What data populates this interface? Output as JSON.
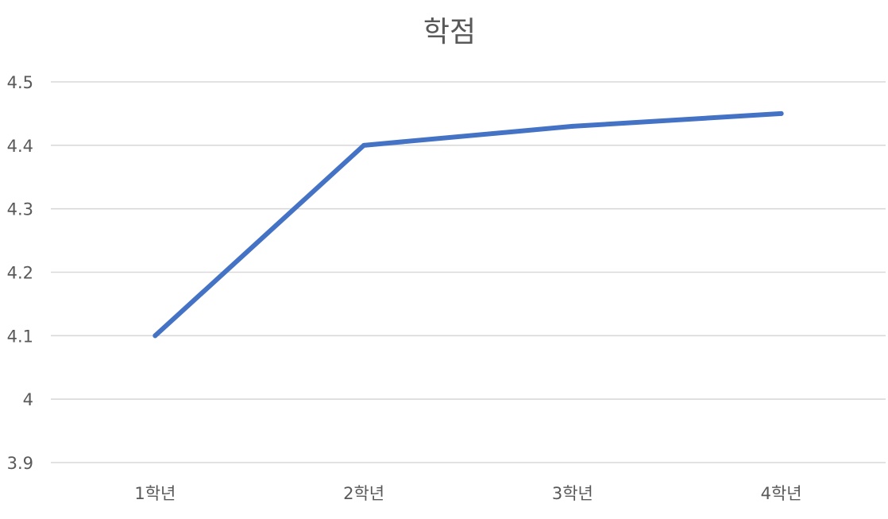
{
  "chart_data": {
    "type": "line",
    "title": "학점",
    "categories": [
      "1학년",
      "2학년",
      "3학년",
      "4학년"
    ],
    "series": [
      {
        "values": [
          4.1,
          4.4,
          4.43,
          4.45
        ],
        "color": "#4472c4"
      }
    ],
    "yticks": [
      "3.9",
      "4",
      "4.1",
      "4.2",
      "4.3",
      "4.4",
      "4.5"
    ],
    "ylim": [
      3.9,
      4.5
    ],
    "xlabel": "",
    "ylabel": "",
    "grid": true,
    "legend": "none",
    "colors": {
      "gridline": "#d9d9d9",
      "text": "#595959"
    }
  }
}
